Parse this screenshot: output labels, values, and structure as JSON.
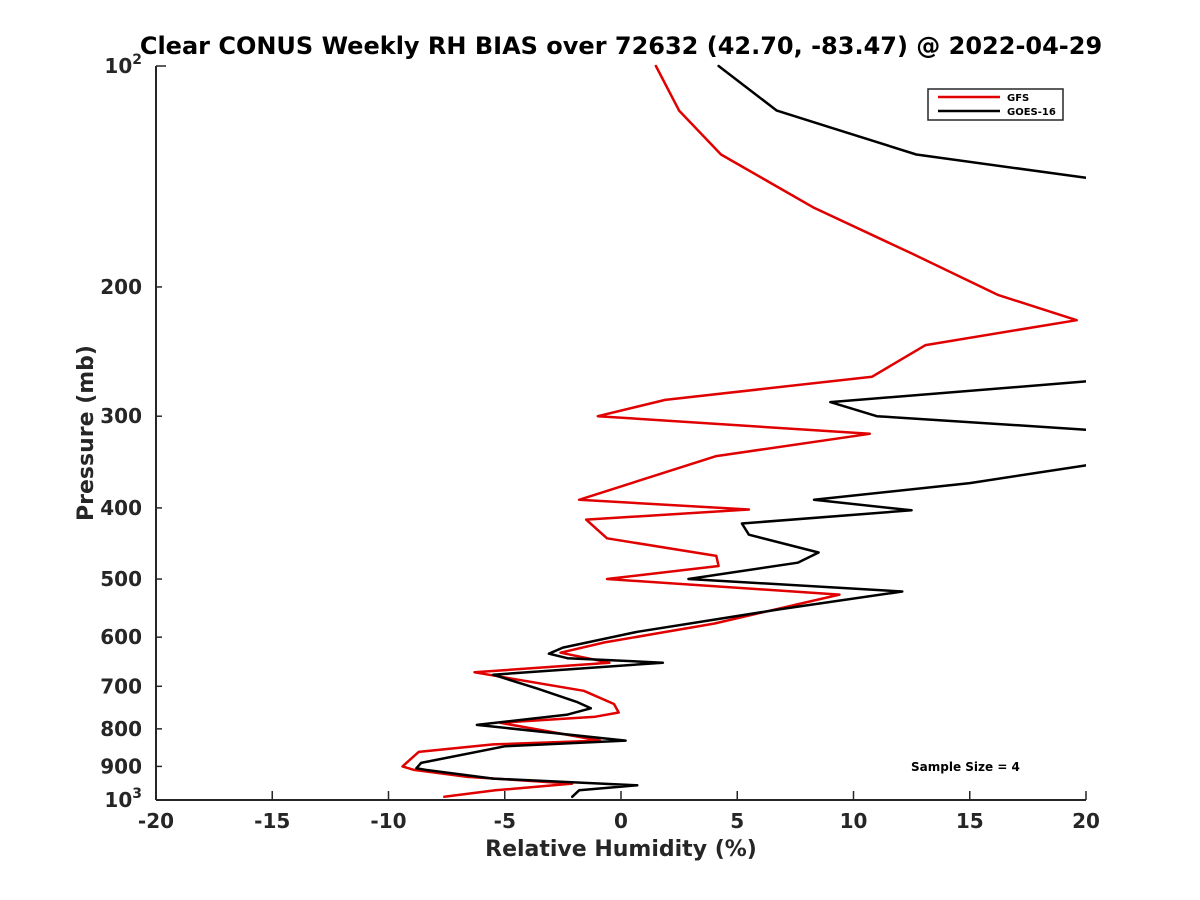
{
  "chart_data": {
    "type": "line",
    "title": "Clear CONUS Weekly RH BIAS over 72632 (42.70, -83.47) @ 2022-04-29",
    "xlabel": "Relative Humidity (%)",
    "ylabel": "Pressure (mb)",
    "xlim": [
      -20,
      20
    ],
    "ylim": [
      100,
      1000
    ],
    "y_scale": "log",
    "y_reversed": true,
    "x_ticks": [
      "-20",
      "-15",
      "-10",
      "-5",
      "0",
      "5",
      "10",
      "15",
      "20"
    ],
    "y_ticks": [
      {
        "value": 100,
        "base": "10",
        "exp": "2"
      },
      {
        "value": 200,
        "label": "200"
      },
      {
        "value": 300,
        "label": "300"
      },
      {
        "value": 400,
        "label": "400"
      },
      {
        "value": 500,
        "label": "500"
      },
      {
        "value": 600,
        "label": "600"
      },
      {
        "value": 700,
        "label": "700"
      },
      {
        "value": 800,
        "label": "800"
      },
      {
        "value": 900,
        "label": "900"
      },
      {
        "value": 1000,
        "base": "10",
        "exp": "3"
      }
    ],
    "legend_position": "top-right",
    "annotation": "Sample Size = 4",
    "series": [
      {
        "name": "GFS",
        "color": "#e00000",
        "points": [
          [
            1.5,
            100
          ],
          [
            2.5,
            115
          ],
          [
            4.3,
            132
          ],
          [
            8.3,
            156
          ],
          [
            12.5,
            180
          ],
          [
            16.2,
            205
          ],
          [
            19.6,
            222
          ],
          [
            13.1,
            240
          ],
          [
            10.8,
            265
          ],
          [
            1.9,
            285
          ],
          [
            -1.0,
            300
          ],
          [
            10.7,
            317
          ],
          [
            4.1,
            340
          ],
          [
            -1.8,
            390
          ],
          [
            5.5,
            402
          ],
          [
            -1.5,
            415
          ],
          [
            -0.6,
            440
          ],
          [
            4.1,
            465
          ],
          [
            4.2,
            480
          ],
          [
            -0.6,
            500
          ],
          [
            9.4,
            525
          ],
          [
            4.0,
            575
          ],
          [
            -0.7,
            610
          ],
          [
            -2.6,
            630
          ],
          [
            -0.5,
            650
          ],
          [
            -6.3,
            670
          ],
          [
            -1.6,
            710
          ],
          [
            -0.3,
            740
          ],
          [
            -0.1,
            760
          ],
          [
            -1.1,
            770
          ],
          [
            -5.2,
            785
          ],
          [
            -0.9,
            830
          ],
          [
            -5.5,
            840
          ],
          [
            -8.7,
            860
          ],
          [
            -9.4,
            900
          ],
          [
            -8.9,
            910
          ],
          [
            -6.6,
            930
          ],
          [
            -2.1,
            950
          ],
          [
            -5.4,
            970
          ],
          [
            -7.6,
            990
          ]
        ]
      },
      {
        "name": "GOES-16",
        "color": "#000000",
        "points": [
          [
            4.2,
            100
          ],
          [
            6.7,
            115
          ],
          [
            12.7,
            132
          ],
          [
            20.0,
            142
          ],
          null,
          [
            20.0,
            269
          ],
          [
            9.0,
            287
          ],
          [
            11.0,
            300
          ],
          [
            20.0,
            313
          ],
          null,
          [
            20.0,
            350
          ],
          [
            15.0,
            370
          ],
          [
            8.3,
            390
          ],
          [
            12.5,
            403
          ],
          [
            5.2,
            420
          ],
          [
            5.5,
            435
          ],
          [
            8.5,
            460
          ],
          [
            7.6,
            475
          ],
          [
            2.9,
            500
          ],
          [
            12.1,
            520
          ],
          [
            6.8,
            550
          ],
          [
            0.7,
            590
          ],
          [
            -2.5,
            620
          ],
          [
            -3.1,
            632
          ],
          [
            -2.3,
            641
          ],
          [
            1.8,
            650
          ],
          [
            -5.5,
            675
          ],
          [
            -3.6,
            705
          ],
          [
            -1.9,
            735
          ],
          [
            -1.3,
            750
          ],
          [
            -2.3,
            765
          ],
          [
            -6.2,
            790
          ],
          [
            0.2,
            830
          ],
          [
            -5.0,
            845
          ],
          [
            -8.6,
            890
          ],
          [
            -8.8,
            905
          ],
          [
            -8.4,
            910
          ],
          [
            -5.5,
            935
          ],
          [
            0.7,
            955
          ],
          [
            -1.8,
            970
          ],
          [
            -2.1,
            990
          ]
        ]
      }
    ]
  }
}
